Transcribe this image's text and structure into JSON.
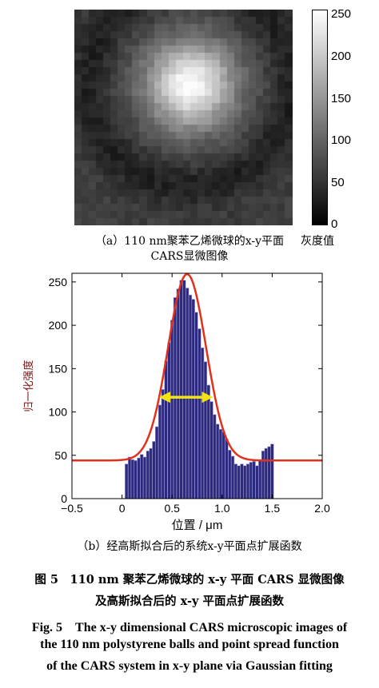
{
  "panel_a": {
    "colorbar_ticks": [
      "250",
      "200",
      "150",
      "100",
      "50",
      "0"
    ],
    "colorbar_label": "灰度值",
    "caption_line1": "（a）110 nm聚苯乙烯微球的x-y平面",
    "caption_line2": "CARS显微图像"
  },
  "panel_b": {
    "caption": "（b）经高斯拟合后的系统x-y平面点扩展函数"
  },
  "figure_caption": {
    "cn_line1": "图 5　110 nm 聚苯乙烯微球的 x-y 平面 CARS 显微图像",
    "cn_line2": "及高斯拟合后的 x-y 平面点扩展函数",
    "en_line1": "Fig. 5　The x-y dimensional CARS microscopic images of",
    "en_line2": "the 110 nm polystyrene balls and point spread function",
    "en_line3": "of the CARS system in x-y plane via Gaussian fitting"
  },
  "chart_data": {
    "type": "bar",
    "xlabel": "位置 / μm",
    "ylabel": "归一化强度",
    "xlim": [
      -0.5,
      2.0
    ],
    "ylim": [
      0,
      260
    ],
    "xticks": [
      "−0.5",
      "0",
      "0.5",
      "1.0",
      "1.5",
      "2.0"
    ],
    "yticks": [
      "0",
      "50",
      "100",
      "150",
      "200",
      "250"
    ],
    "bar_color": "#2b2a7e",
    "fit_color": "#e0301e",
    "arrow_color": "#f2e311",
    "bar_width": 0.0303,
    "x": [
      0.045,
      0.076,
      0.106,
      0.136,
      0.167,
      0.197,
      0.227,
      0.258,
      0.288,
      0.318,
      0.348,
      0.379,
      0.409,
      0.439,
      0.47,
      0.5,
      0.53,
      0.561,
      0.591,
      0.621,
      0.652,
      0.682,
      0.712,
      0.742,
      0.773,
      0.803,
      0.833,
      0.864,
      0.894,
      0.924,
      0.955,
      0.985,
      1.015,
      1.045,
      1.076,
      1.106,
      1.136,
      1.167,
      1.197,
      1.227,
      1.258,
      1.288,
      1.318,
      1.348,
      1.379,
      1.409,
      1.439,
      1.47,
      1.5
    ],
    "values": [
      40,
      48,
      45,
      44,
      47,
      51,
      48,
      55,
      58,
      66,
      83,
      108,
      126,
      159,
      180,
      206,
      232,
      242,
      252,
      252,
      243,
      235,
      230,
      215,
      196,
      174,
      158,
      131,
      112,
      97,
      86,
      80,
      77,
      69,
      56,
      49,
      40,
      38,
      40,
      38,
      40,
      42,
      43,
      38,
      44,
      55,
      58,
      60,
      63
    ],
    "fit": {
      "baseline": 44,
      "amplitude": 215,
      "center": 0.65,
      "sigma": 0.19
    },
    "fwhm_arrow": [
      0.37,
      0.91,
      117
    ]
  }
}
